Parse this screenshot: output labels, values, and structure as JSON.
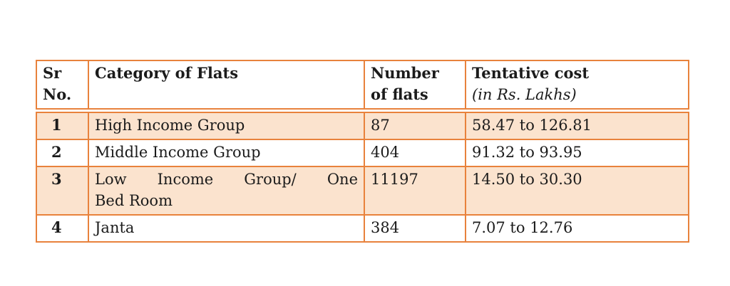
{
  "colors": {
    "table_border": "#e8823c",
    "row_highlight": "#fbe3ce",
    "header_bg": "#ffffff",
    "text": "#1b1b1b"
  },
  "table": {
    "header": {
      "sr_line1": "Sr",
      "sr_line2": "No.",
      "category": "Category of Flats",
      "number_line1": "Number",
      "number_line2": "of flats",
      "cost_title": "Tentative cost",
      "cost_subtitle": "(in Rs. Lakhs)"
    },
    "rows": [
      {
        "sr": "1",
        "category": "High Income Group",
        "flats": "87",
        "cost": "58.47 to 126.81"
      },
      {
        "sr": "2",
        "category": "Middle Income Group",
        "flats": "404",
        "cost": "91.32 to 93.95"
      },
      {
        "sr": "3",
        "category": "Low Income Group/ One Bed Room",
        "category_line1": "Low Income Group/ One",
        "category_line2": "Bed Room",
        "flats": "11197",
        "cost": "14.50 to 30.30"
      },
      {
        "sr": "4",
        "category": "Janta",
        "flats": "384",
        "cost": "7.07 to 12.76"
      }
    ]
  }
}
